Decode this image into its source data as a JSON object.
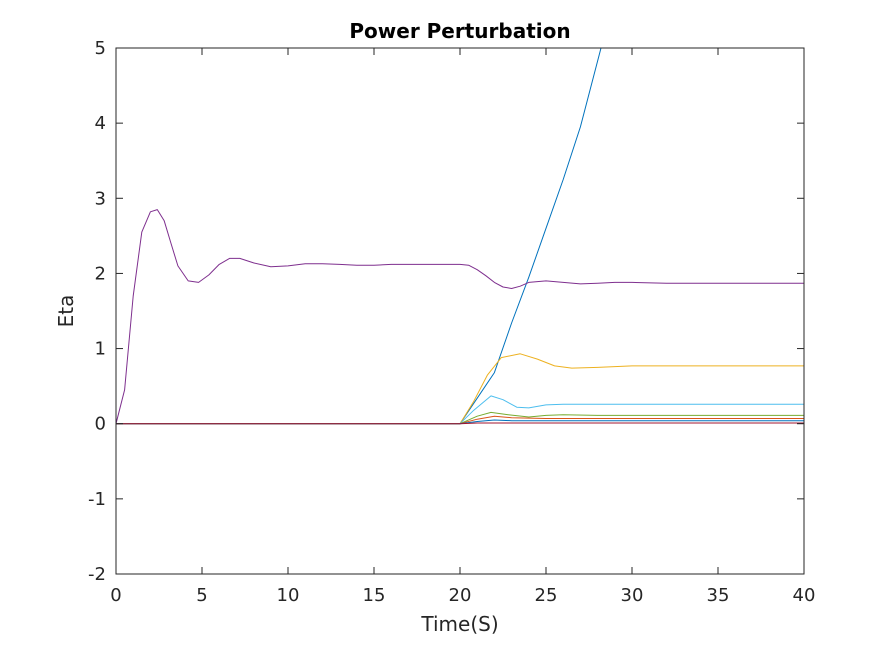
{
  "chart_data": {
    "type": "line",
    "title": "Power Perturbation",
    "xlabel": "Time(S)",
    "ylabel": "Eta",
    "xlim": [
      0,
      40
    ],
    "ylim": [
      -2,
      5
    ],
    "xticks": [
      "0",
      "5",
      "10",
      "15",
      "20",
      "25",
      "30",
      "35",
      "40"
    ],
    "yticks": [
      "-2",
      "-1",
      "0",
      "1",
      "2",
      "3",
      "4",
      "5"
    ],
    "grid": false,
    "legend": "none",
    "series": [
      {
        "color": "#0072BD",
        "x": [
          0,
          20,
          21,
          22,
          23,
          24,
          25,
          26,
          27,
          28.2
        ],
        "y": [
          0,
          0,
          0.34,
          0.68,
          1.34,
          1.95,
          2.6,
          3.25,
          3.95,
          5.0
        ]
      },
      {
        "color": "#EDB120",
        "x": [
          0,
          20,
          20.8,
          21.6,
          22.4,
          23.5,
          24.5,
          25.5,
          26.5,
          28,
          30,
          35,
          40
        ],
        "y": [
          0,
          0,
          0.3,
          0.65,
          0.88,
          0.93,
          0.86,
          0.77,
          0.74,
          0.75,
          0.77,
          0.77,
          0.77
        ]
      },
      {
        "color": "#4DBEEE",
        "x": [
          0,
          20,
          20.8,
          21.8,
          22.5,
          23.3,
          24,
          25,
          26,
          28,
          30,
          35,
          40
        ],
        "y": [
          0,
          0,
          0.18,
          0.37,
          0.32,
          0.22,
          0.21,
          0.25,
          0.26,
          0.26,
          0.26,
          0.26,
          0.26
        ]
      },
      {
        "color": "#77AC30",
        "x": [
          0,
          20,
          21,
          21.8,
          22.8,
          24,
          25,
          26,
          28,
          30,
          35,
          40
        ],
        "y": [
          0,
          0,
          0.1,
          0.15,
          0.12,
          0.09,
          0.11,
          0.12,
          0.11,
          0.11,
          0.11,
          0.11
        ]
      },
      {
        "color": "#D95319",
        "x": [
          0,
          20,
          21,
          22,
          23,
          25,
          30,
          40
        ],
        "y": [
          0,
          0,
          0.06,
          0.1,
          0.08,
          0.07,
          0.07,
          0.07
        ]
      },
      {
        "color": "#0072BD",
        "x": [
          0,
          20,
          21,
          22,
          23,
          25,
          30,
          40
        ],
        "y": [
          0,
          0,
          0.03,
          0.05,
          0.04,
          0.04,
          0.04,
          0.04
        ]
      },
      {
        "color": "#A2142F",
        "x": [
          0,
          20,
          21,
          22,
          25,
          30,
          40
        ],
        "y": [
          0,
          0,
          0.01,
          0.01,
          0.01,
          0.01,
          0.01
        ]
      },
      {
        "color": "#7E2F8E",
        "x": [
          0,
          0.5,
          1,
          1.5,
          2,
          2.4,
          2.8,
          3.2,
          3.6,
          4.2,
          4.8,
          5.4,
          6,
          6.6,
          7.2,
          8,
          9,
          10,
          11,
          12,
          13,
          14,
          15,
          16,
          17,
          18,
          19,
          20,
          20.5,
          21,
          21.5,
          22,
          22.5,
          23,
          23.5,
          24,
          25,
          26,
          27,
          28,
          29,
          30,
          32,
          35,
          38,
          40
        ],
        "y": [
          0,
          0.45,
          1.7,
          2.55,
          2.82,
          2.85,
          2.7,
          2.4,
          2.1,
          1.9,
          1.88,
          1.98,
          2.12,
          2.2,
          2.2,
          2.14,
          2.09,
          2.1,
          2.13,
          2.13,
          2.12,
          2.11,
          2.11,
          2.12,
          2.12,
          2.12,
          2.12,
          2.12,
          2.11,
          2.05,
          1.97,
          1.88,
          1.82,
          1.8,
          1.83,
          1.88,
          1.9,
          1.88,
          1.86,
          1.87,
          1.88,
          1.88,
          1.87,
          1.87,
          1.87,
          1.87
        ]
      }
    ]
  }
}
